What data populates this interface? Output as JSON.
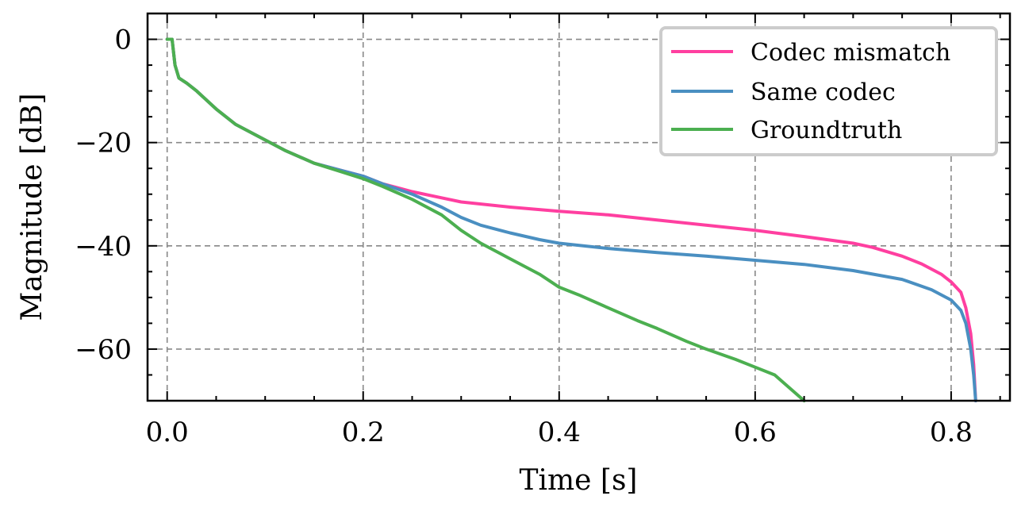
{
  "chart_data": {
    "type": "line",
    "title": "",
    "xlabel": "Time [s]",
    "ylabel": "Magnitude [dB]",
    "xlim": [
      -0.02,
      0.86
    ],
    "ylim": [
      -70,
      5
    ],
    "x_ticks": [
      0.0,
      0.2,
      0.4,
      0.6,
      0.8
    ],
    "x_tick_labels": [
      "0.0",
      "0.2",
      "0.4",
      "0.6",
      "0.8"
    ],
    "y_ticks": [
      0,
      -20,
      -40,
      -60
    ],
    "y_tick_labels": [
      "0",
      "−20",
      "−40",
      "−60"
    ],
    "grid": true,
    "legend_position": "top-right",
    "series": [
      {
        "name": "Codec mismatch",
        "color": "#ff3fa0",
        "x": [
          0.0,
          0.005,
          0.008,
          0.012,
          0.02,
          0.03,
          0.05,
          0.07,
          0.1,
          0.12,
          0.15,
          0.18,
          0.2,
          0.22,
          0.25,
          0.28,
          0.3,
          0.35,
          0.4,
          0.45,
          0.5,
          0.55,
          0.6,
          0.65,
          0.7,
          0.72,
          0.75,
          0.77,
          0.79,
          0.8,
          0.81,
          0.815,
          0.82,
          0.823,
          0.825
        ],
        "y": [
          0,
          0,
          -5,
          -7.5,
          -8.5,
          -10,
          -13.5,
          -16.5,
          -19.5,
          -21.5,
          -24,
          -25.5,
          -26.5,
          -28,
          -29.5,
          -30.7,
          -31.5,
          -32.5,
          -33.3,
          -34,
          -35,
          -36,
          -37,
          -38.2,
          -39.5,
          -40.3,
          -42,
          -43.5,
          -45.5,
          -47,
          -49,
          -52,
          -57,
          -63,
          -70
        ]
      },
      {
        "name": "Same codec",
        "color": "#4a8fc1",
        "x": [
          0.0,
          0.005,
          0.008,
          0.012,
          0.02,
          0.03,
          0.05,
          0.07,
          0.1,
          0.12,
          0.15,
          0.18,
          0.2,
          0.22,
          0.25,
          0.28,
          0.3,
          0.32,
          0.35,
          0.38,
          0.4,
          0.45,
          0.5,
          0.55,
          0.6,
          0.65,
          0.7,
          0.75,
          0.78,
          0.8,
          0.81,
          0.815,
          0.82,
          0.823,
          0.825
        ],
        "y": [
          0,
          0,
          -5,
          -7.5,
          -8.5,
          -10,
          -13.5,
          -16.5,
          -19.5,
          -21.5,
          -24,
          -25.5,
          -26.5,
          -28,
          -30,
          -32.5,
          -34.5,
          -36,
          -37.5,
          -38.8,
          -39.5,
          -40.5,
          -41.3,
          -42,
          -42.8,
          -43.6,
          -44.8,
          -46.5,
          -48.5,
          -50.5,
          -52.5,
          -55,
          -60,
          -65,
          -70
        ]
      },
      {
        "name": "Groundtruth",
        "color": "#4caf50",
        "x": [
          0.0,
          0.005,
          0.008,
          0.012,
          0.02,
          0.03,
          0.05,
          0.07,
          0.1,
          0.12,
          0.15,
          0.18,
          0.2,
          0.22,
          0.25,
          0.28,
          0.3,
          0.32,
          0.35,
          0.38,
          0.4,
          0.42,
          0.45,
          0.48,
          0.5,
          0.53,
          0.55,
          0.58,
          0.6,
          0.62,
          0.65
        ],
        "y": [
          0,
          0,
          -5,
          -7.5,
          -8.5,
          -10,
          -13.5,
          -16.5,
          -19.5,
          -21.5,
          -24,
          -25.8,
          -27,
          -28.5,
          -31,
          -34,
          -37,
          -39.5,
          -42.5,
          -45.5,
          -48,
          -49.5,
          -52,
          -54.5,
          -56,
          -58.5,
          -60,
          -62,
          -63.5,
          -65,
          -70
        ]
      }
    ]
  }
}
